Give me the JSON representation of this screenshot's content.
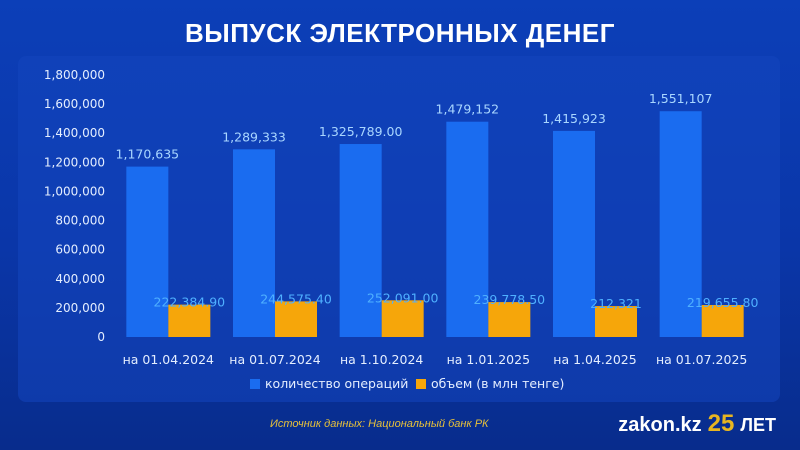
{
  "header": {
    "title": "ВЫПУСК ЭЛЕКТРОННЫХ ДЕНЕГ"
  },
  "footer": {
    "source": "Источник данных: Национальный банк РК",
    "logo": "zakon.kz",
    "logo_years": "25",
    "logo_suffix": "ЛЕТ"
  },
  "colors": {
    "background": "#0b3aa8",
    "series1": "#1a6cf0",
    "series2": "#f6a60a",
    "series1_label": "#a9d6ff",
    "series2_label": "#4fb0ff",
    "axis_text": "#e4eeff"
  },
  "chart_data": {
    "type": "bar",
    "title": "ВЫПУСК ЭЛЕКТРОННЫХ ДЕНЕГ",
    "categories": [
      "на 01.04.2024",
      "на 01.07.2024",
      "на 1.10.2024",
      "на 1.01.2025",
      "на 1.04.2025",
      "на 01.07.2025"
    ],
    "series": [
      {
        "name": "количество операций",
        "values": [
          1170635,
          1289333,
          1325789.0,
          1479152,
          1415923,
          1551107
        ],
        "labels": [
          "1,170,635",
          "1,289,333",
          "1,325,789.00",
          "1,479,152",
          "1,415,923",
          "1,551,107"
        ]
      },
      {
        "name": "объем (в млн тенге)",
        "values": [
          222384.9,
          244575.4,
          252091.0,
          239778.5,
          212321,
          219655.8
        ],
        "labels": [
          "222,384.90",
          "244,575.40",
          "252,091.00",
          "239,778.50",
          "212,321",
          "219,655.80"
        ]
      }
    ],
    "ylim": [
      0,
      1800000
    ],
    "yticks": [
      0,
      200000,
      400000,
      600000,
      800000,
      1000000,
      1200000,
      1400000,
      1600000,
      1800000
    ],
    "ytick_labels": [
      "0",
      "200,000",
      "400,000",
      "600,000",
      "800,000",
      "1,000,000",
      "1,200,000",
      "1,400,000",
      "1,600,000",
      "1,800,000"
    ],
    "grid": false,
    "legend": "bottom-center"
  }
}
